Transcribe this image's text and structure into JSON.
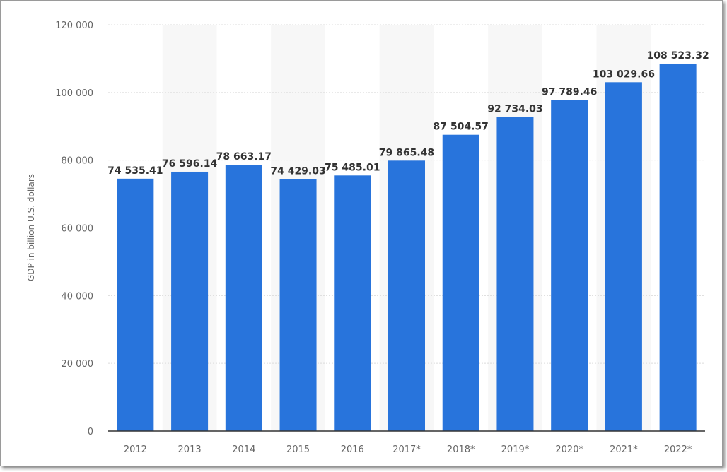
{
  "chart_data": {
    "type": "bar",
    "title": "",
    "xlabel": "",
    "ylabel": "GDP in billion U.S. dollars",
    "categories": [
      "2012",
      "2013",
      "2014",
      "2015",
      "2016",
      "2017*",
      "2018*",
      "2019*",
      "2020*",
      "2021*",
      "2022*"
    ],
    "values": [
      74535.41,
      76596.14,
      78663.17,
      74429.03,
      75485.01,
      79865.48,
      87504.57,
      92734.03,
      97789.46,
      103029.66,
      108523.32
    ],
    "data_labels": [
      "74 535.41",
      "76 596.14",
      "78 663.17",
      "74 429.03",
      "75 485.01",
      "79 865.48",
      "87 504.57",
      "92 734.03",
      "97 789.46",
      "103 029.66",
      "108 523.32"
    ],
    "ylim": [
      0,
      120000
    ],
    "yticks": [
      0,
      20000,
      40000,
      60000,
      80000,
      100000,
      120000
    ],
    "ytick_labels": [
      "0",
      "20 000",
      "40 000",
      "60 000",
      "80 000",
      "100 000",
      "120 000"
    ],
    "grid": true,
    "bar_color": "#2874dc",
    "band_color": "#f7f7f7"
  }
}
